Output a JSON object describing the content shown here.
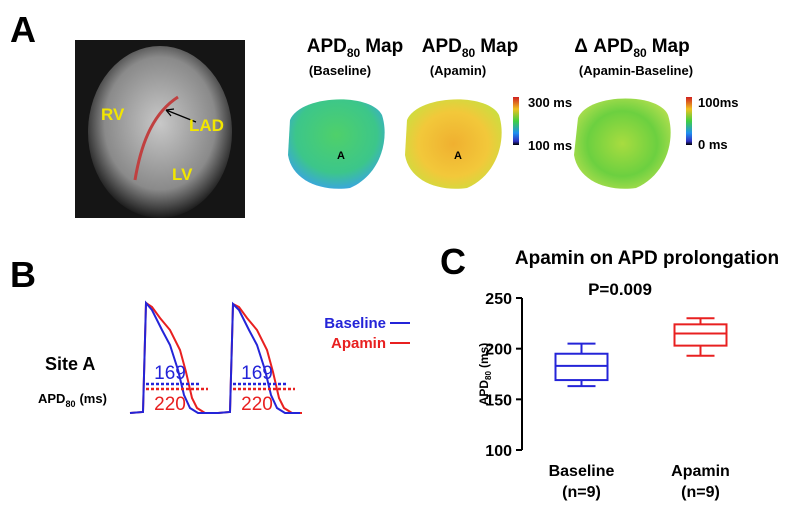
{
  "panel_a": {
    "label": "A",
    "image_labels": [
      "RV",
      "LAD",
      "LV"
    ],
    "maps": [
      {
        "title": {
          "pre": "APD",
          "sub": "80",
          "post": "Map"
        },
        "subtitle": "(Baseline)",
        "site": "A"
      },
      {
        "title": {
          "pre": "APD",
          "sub": "80",
          "post": "Map"
        },
        "subtitle": "(Apamin)",
        "site": "A"
      },
      {
        "title": {
          "pre": "Δ APD",
          "sub": "80",
          "post": "Map"
        },
        "subtitle": "(Apamin-Baseline)"
      }
    ],
    "colorbars": [
      {
        "top": "300 ms",
        "bottom": "100 ms"
      },
      {
        "top": "100ms",
        "bottom": "0 ms"
      }
    ]
  },
  "panel_b": {
    "label": "B",
    "site": "Site A",
    "measure": {
      "pre": "APD",
      "sub": "80",
      "post": "(ms)"
    },
    "legend": [
      "Baseline",
      "Apamin"
    ],
    "beats": [
      {
        "baseline": "169",
        "apamin": "220"
      },
      {
        "baseline": "169",
        "apamin": "220"
      }
    ]
  },
  "panel_c_label": "C",
  "chart_data": {
    "type": "box",
    "title": "Apamin on APD prolongation",
    "subtitle": "P=0.009",
    "y_label": {
      "pre": "APD",
      "sub": "80",
      "post": "(ms)"
    },
    "categories": [
      "Baseline",
      "Apamin"
    ],
    "category_notes": [
      "(n=9)",
      "(n=9)"
    ],
    "boxes": [
      {
        "color": "#2424d8",
        "min": 163,
        "q1": 169,
        "median": 183,
        "q3": 195,
        "max": 205
      },
      {
        "color": "#e82020",
        "min": 193,
        "q1": 203,
        "median": 215,
        "q3": 224,
        "max": 230
      }
    ],
    "ylim": [
      100,
      250
    ],
    "yticks": [
      100,
      150,
      200,
      250
    ]
  }
}
